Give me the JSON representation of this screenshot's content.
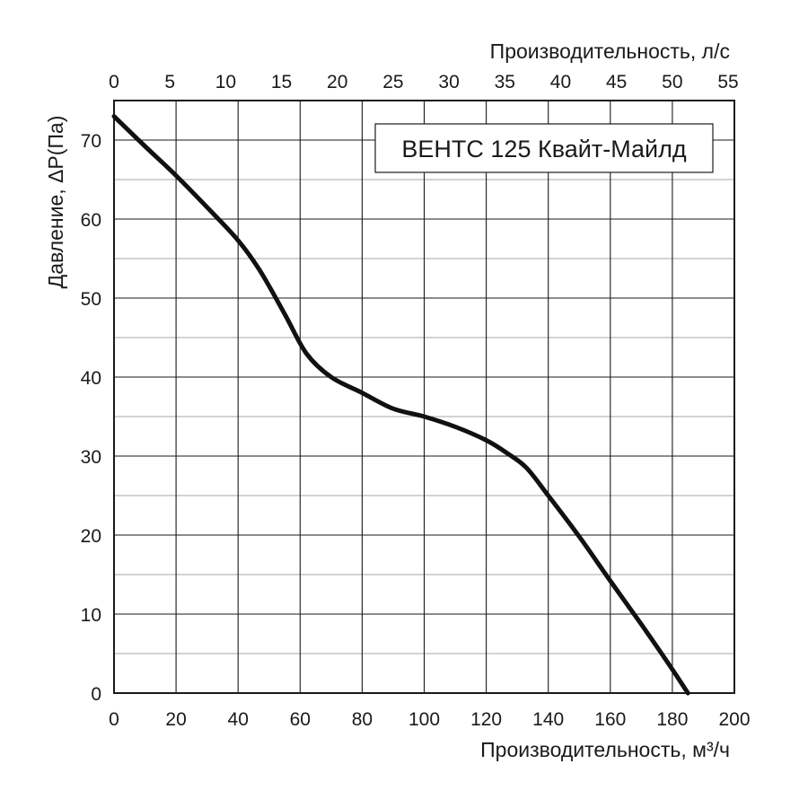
{
  "chart_data": {
    "type": "line",
    "legend_title": "ВЕНТС 125 Квайт-Майлд",
    "legend_position": "top-right",
    "grid": true,
    "x_bottom": {
      "label": "Производительность, м³/ч",
      "range": [
        0,
        200
      ],
      "ticks": [
        0,
        20,
        40,
        60,
        80,
        100,
        120,
        140,
        160,
        180,
        200
      ]
    },
    "x_top": {
      "label": "Производительность, л/с",
      "range": [
        0,
        55.56
      ],
      "ticks": [
        0,
        5,
        10,
        15,
        20,
        25,
        30,
        35,
        40,
        45,
        50,
        55
      ]
    },
    "y": {
      "label": "Давление, ΔP(Па)",
      "range": [
        0,
        75
      ],
      "ticks": [
        0,
        10,
        20,
        30,
        40,
        50,
        60,
        70
      ]
    },
    "series": [
      {
        "x": [
          0,
          10,
          20,
          30,
          40,
          47,
          55,
          62,
          70,
          80,
          90,
          100,
          110,
          120,
          127,
          133,
          140,
          150,
          160,
          170,
          180,
          185
        ],
        "y": [
          73,
          69.2,
          65.5,
          61.5,
          57.3,
          53.5,
          48,
          43,
          40,
          38,
          36,
          35,
          33.7,
          32,
          30.3,
          28.5,
          25,
          19.8,
          14.2,
          8.7,
          3,
          0
        ]
      }
    ]
  }
}
